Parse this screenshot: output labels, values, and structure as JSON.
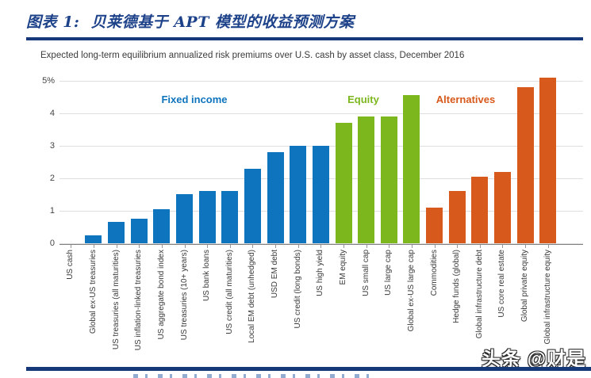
{
  "header": {
    "title": "图表 1:  贝莱德基于 APT 模型的收益预测方案"
  },
  "watermark": "头条 @财是",
  "colors": {
    "rule_navy": "#143878",
    "title_blue": "#1d4289",
    "fixed_income_blue": "#0e74be",
    "equity_green": "#7cb71e",
    "alternatives_orange": "#d8591c",
    "gridline_gray": "#dedede",
    "axis_gray": "#7f7f7f"
  },
  "chart_data": {
    "type": "bar",
    "title": "Expected long-term equilibrium annualized risk premiums over U.S. cash by asset class, December 2016",
    "xlabel": "",
    "ylabel": "",
    "ylim": [
      0,
      5
    ],
    "ytick_labels": [
      "0",
      "1",
      "2",
      "3",
      "4",
      "5%"
    ],
    "grid": true,
    "legend_position": "inline-group-labels",
    "groups": [
      {
        "name": "Fixed income",
        "color": "#0e74be"
      },
      {
        "name": "Equity",
        "color": "#7cb71e"
      },
      {
        "name": "Alternatives",
        "color": "#d8591c"
      }
    ],
    "bars": [
      {
        "label": "US cash",
        "group": 0,
        "value": 0
      },
      {
        "label": "Global ex-US treasuries",
        "group": 0,
        "value": 0.25
      },
      {
        "label": "US treasuries (all maturities)",
        "group": 0,
        "value": 0.65
      },
      {
        "label": "US inflation-linked treasuries",
        "group": 0,
        "value": 0.75
      },
      {
        "label": "US aggregate bond index",
        "group": 0,
        "value": 1.05
      },
      {
        "label": "US treasuries (10+ years)",
        "group": 0,
        "value": 1.5
      },
      {
        "label": "US bank loans",
        "group": 0,
        "value": 1.6
      },
      {
        "label": "US credit (all maturities)",
        "group": 0,
        "value": 1.6
      },
      {
        "label": "Local EM debt (unhedged)",
        "group": 0,
        "value": 2.3
      },
      {
        "label": "USD EM debt",
        "group": 0,
        "value": 2.8
      },
      {
        "label": "US credit (long bonds)",
        "group": 0,
        "value": 3.0
      },
      {
        "label": "US high yield",
        "group": 0,
        "value": 3.0
      },
      {
        "label": "EM equity",
        "group": 1,
        "value": 3.7
      },
      {
        "label": "US small cap",
        "group": 1,
        "value": 3.9
      },
      {
        "label": "US large cap",
        "group": 1,
        "value": 3.9
      },
      {
        "label": "Global ex-US large cap",
        "group": 1,
        "value": 4.55
      },
      {
        "label": "Commodities",
        "group": 2,
        "value": 1.1
      },
      {
        "label": "Hedge funds (global)",
        "group": 2,
        "value": 1.6
      },
      {
        "label": "Global infrastructure debt",
        "group": 2,
        "value": 2.05
      },
      {
        "label": "US core real estate",
        "group": 2,
        "value": 2.2
      },
      {
        "label": "Global private equity",
        "group": 2,
        "value": 4.8
      },
      {
        "label": "Global infrastructure equity",
        "group": 2,
        "value": 5.1
      }
    ]
  }
}
